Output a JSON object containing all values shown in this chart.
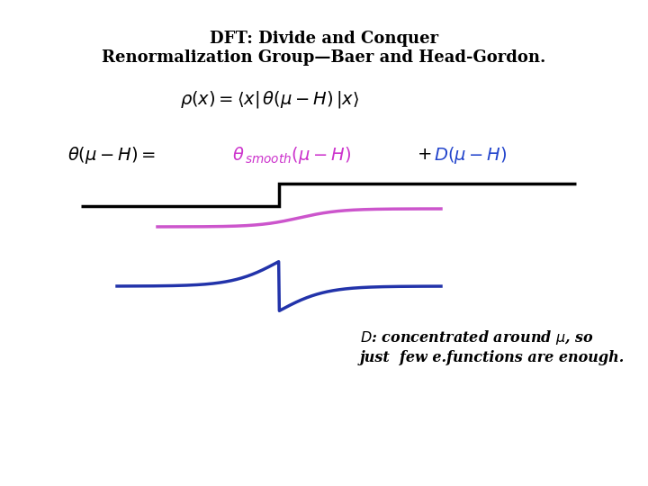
{
  "title_line1": "DFT: Divide and Conquer",
  "title_line2": "Renormalization Group—Baer and Head-Gordon.",
  "bg_color": "#ffffff",
  "title_color": "#000000",
  "step_color": "#000000",
  "sigmoid_color": "#cc55cc",
  "deriv_color": "#2233aa",
  "formula_magenta": "#cc33cc",
  "formula_blue": "#2244cc",
  "annotation_line1": "$D$: concentrated around $\\mu$, so",
  "annotation_line2": "just  few e.functions are enough."
}
